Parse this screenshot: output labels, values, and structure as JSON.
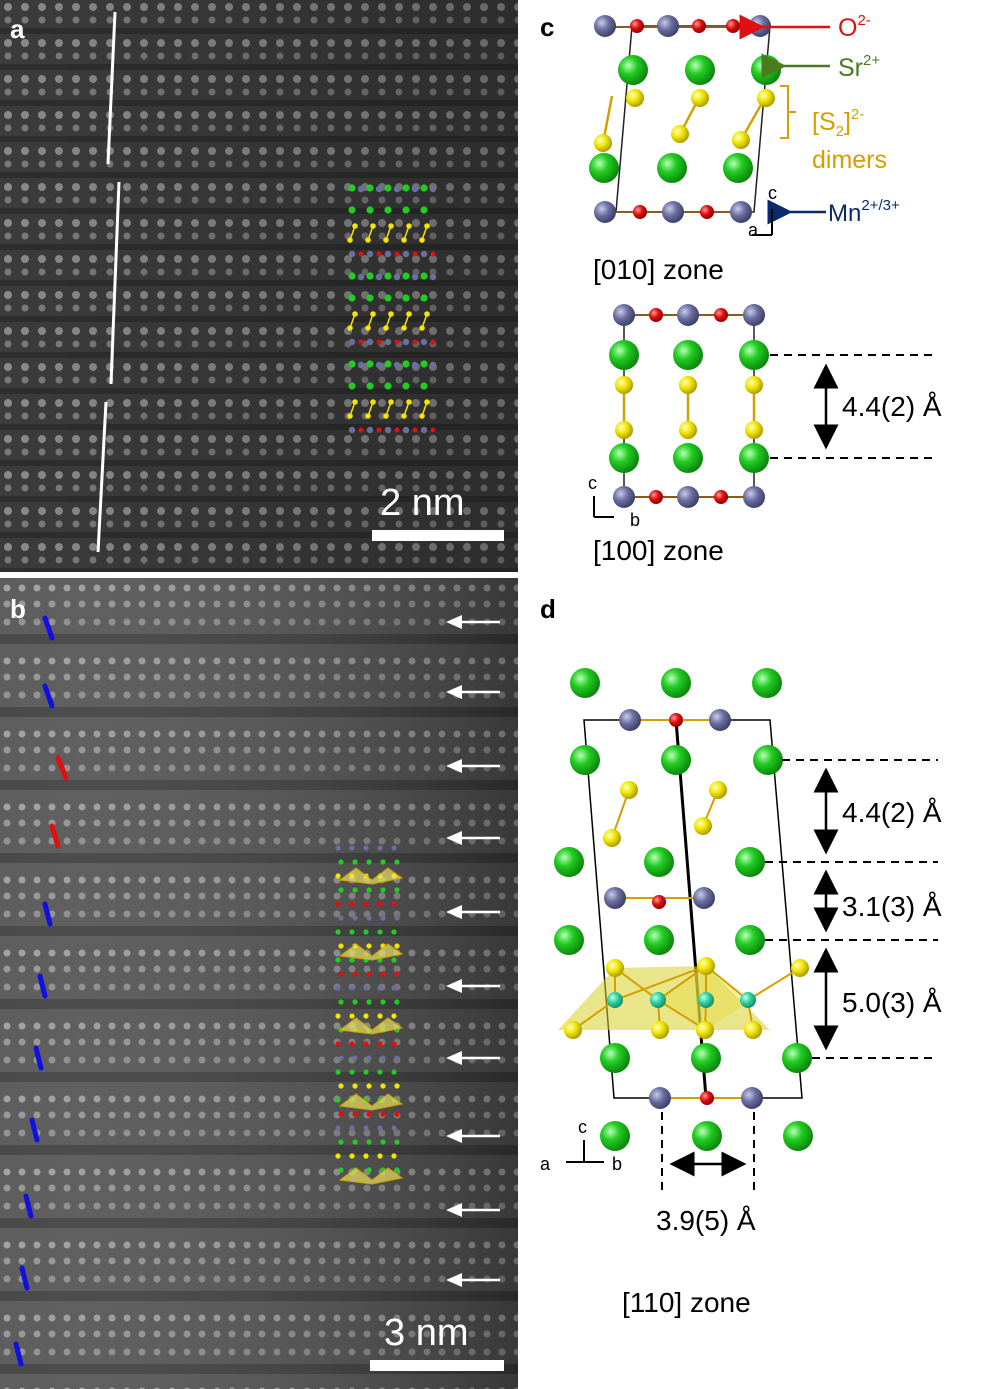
{
  "panels": {
    "a": {
      "label": "a",
      "scale_bar": "2 nm"
    },
    "b": {
      "label": "b",
      "scale_bar": "3 nm"
    },
    "c": {
      "label": "c",
      "zone_top": "[010] zone",
      "zone_bottom": "[100] zone",
      "distance": "4.4(2) Å"
    },
    "d": {
      "label": "d",
      "zone": "[110] zone",
      "distances": [
        "4.4(2) Å",
        "3.1(3) Å",
        "5.0(3) Å"
      ],
      "width": "3.9(5) Å"
    }
  },
  "legend": {
    "oxygen": "O",
    "oxygen_sup": "2-",
    "strontium": "Sr",
    "strontium_sup": "2+",
    "sulfur_1": "[S",
    "sulfur_sub": "2",
    "sulfur_2": "]",
    "sulfur_sup": "2-",
    "sulfur_line2": "dimers",
    "manganese": "Mn",
    "manganese_sup": "2+/3+"
  },
  "axes": {
    "c_top": "c",
    "a_top": "a",
    "c_mid": "c",
    "b_mid": "b",
    "c_d": "c",
    "a_d": "a",
    "b_d": "b"
  },
  "colors": {
    "oxygen": "#e01010",
    "strontium": "#22cc22",
    "sulfur": "#f2e600",
    "manganese": "#6b6fa0",
    "mn_d": "#2fd3a0",
    "blue_dash": "#1010e0",
    "red_dash": "#e01010",
    "legend_o": "#e01010",
    "legend_sr": "#4a7c1e",
    "legend_s": "#d4a000",
    "legend_mn": "#0a2a6e"
  }
}
